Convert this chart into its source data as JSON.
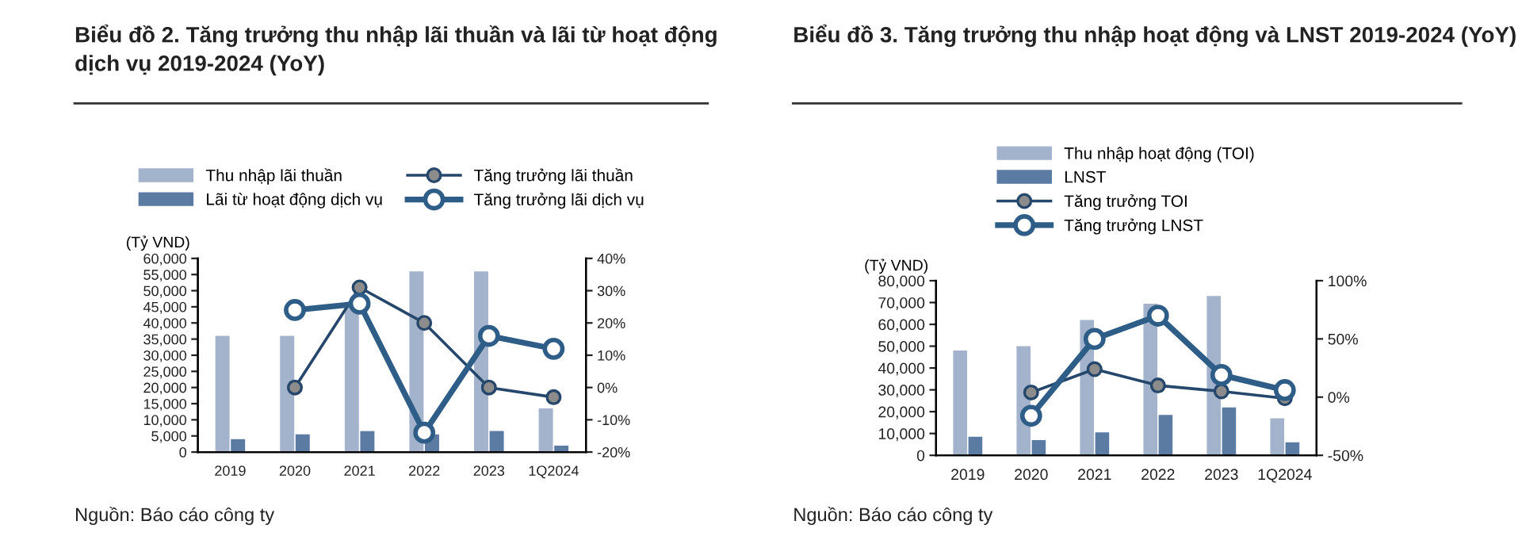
{
  "chart_data": [
    {
      "type": "bar",
      "title": "Biểu đồ 2. Tăng trưởng thu nhập lãi thuần và lãi từ hoạt động dịch vụ 2019-2024 (YoY)",
      "ylabel": "(Tỷ VND)",
      "categories": [
        "2019",
        "2020",
        "2021",
        "2022",
        "2023",
        "1Q2024"
      ],
      "series": [
        {
          "name": "Thu nhập lãi thuần",
          "color": "#a3b3cc",
          "values": [
            36000,
            36000,
            46500,
            56000,
            56000,
            13500
          ]
        },
        {
          "name": "Lãi từ hoạt động dịch vụ",
          "color": "#5b7ba3",
          "values": [
            4000,
            5500,
            6500,
            5500,
            6500,
            2000
          ]
        },
        {
          "name": "Tăng trưởng lãi thuần",
          "type": "line",
          "axis": "y2",
          "color": "#24476b",
          "values": [
            null,
            0,
            31,
            20,
            0,
            -3
          ]
        },
        {
          "name": "Tăng trưởng lãi dịch vụ",
          "type": "line",
          "axis": "y2",
          "color": "#2e5d87",
          "values": [
            null,
            24,
            26,
            -14,
            16,
            12
          ]
        }
      ],
      "ylim": [
        0,
        60000
      ],
      "yticks": [
        {
          "value": 0,
          "label": "0"
        },
        {
          "value": 5000,
          "label": "5,000"
        },
        {
          "value": 10000,
          "label": "10,000"
        },
        {
          "value": 15000,
          "label": "15,000"
        },
        {
          "value": 20000,
          "label": "20,000"
        },
        {
          "value": 25000,
          "label": "25,000"
        },
        {
          "value": 30000,
          "label": "30,000"
        },
        {
          "value": 35000,
          "label": "35,000"
        },
        {
          "value": 40000,
          "label": "40,000"
        },
        {
          "value": 45000,
          "label": "45,000"
        },
        {
          "value": 50000,
          "label": "50,000"
        },
        {
          "value": 55000,
          "label": "55,000"
        },
        {
          "value": 60000,
          "label": "60,000"
        }
      ],
      "y2lim": [
        -20,
        40
      ],
      "y2ticks": [
        {
          "value": -20,
          "label": "-20%"
        },
        {
          "value": -10,
          "label": "-10%"
        },
        {
          "value": 0,
          "label": "0%"
        },
        {
          "value": 10,
          "label": "10%"
        },
        {
          "value": 20,
          "label": "20%"
        },
        {
          "value": 30,
          "label": "30%"
        },
        {
          "value": 40,
          "label": "40%"
        }
      ],
      "marker": "circle",
      "grid": false,
      "legend": "top",
      "annotations": [
        "Nguồn: Báo cáo công ty"
      ]
    },
    {
      "type": "bar",
      "title": "Biểu đồ 3. Tăng trưởng thu nhập hoạt động và LNST 2019-2024 (YoY)",
      "ylabel": "(Tỷ VND)",
      "categories": [
        "2019",
        "2020",
        "2021",
        "2022",
        "2023",
        "1Q2024"
      ],
      "series": [
        {
          "name": "Thu nhập hoạt động (TOI)",
          "color": "#a3b3cc",
          "values": [
            48000,
            50000,
            62000,
            69500,
            73000,
            17000
          ]
        },
        {
          "name": "LNST",
          "color": "#5b7ba3",
          "values": [
            8500,
            7000,
            10500,
            18500,
            22000,
            6000
          ]
        },
        {
          "name": "Tăng trưởng TOI",
          "type": "line",
          "axis": "y2",
          "color": "#24476b",
          "values": [
            null,
            4,
            24,
            10,
            5,
            -1
          ]
        },
        {
          "name": "Tăng trưởng LNST",
          "type": "line",
          "axis": "y2",
          "color": "#2e5d87",
          "values": [
            null,
            -16,
            50,
            70,
            19,
            6
          ]
        }
      ],
      "ylim": [
        0,
        80000
      ],
      "yticks": [
        {
          "value": 0,
          "label": "0"
        },
        {
          "value": 10000,
          "label": "10,000"
        },
        {
          "value": 20000,
          "label": "20,000"
        },
        {
          "value": 30000,
          "label": "30,000"
        },
        {
          "value": 40000,
          "label": "40,000"
        },
        {
          "value": 50000,
          "label": "50,000"
        },
        {
          "value": 60000,
          "label": "60,000"
        },
        {
          "value": 70000,
          "label": "70,000"
        },
        {
          "value": 80000,
          "label": "80,000"
        }
      ],
      "y2lim": [
        -50,
        100
      ],
      "y2ticks": [
        {
          "value": -50,
          "label": "-50%"
        },
        {
          "value": 0,
          "label": "0%"
        },
        {
          "value": 50,
          "label": "50%"
        },
        {
          "value": 100,
          "label": "100%"
        }
      ],
      "marker": "circle",
      "grid": false,
      "legend": "top",
      "annotations": [
        "Nguồn: Báo cáo công ty"
      ]
    }
  ]
}
